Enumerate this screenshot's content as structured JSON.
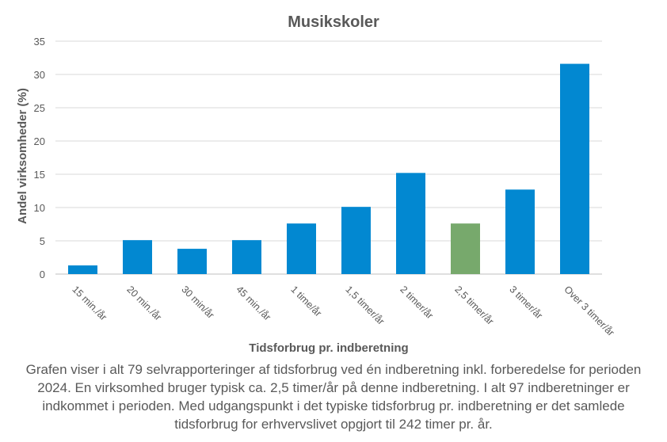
{
  "chart_data": {
    "type": "bar",
    "title": "Musikskoler",
    "xlabel": "Tidsforbrug pr. indberetning",
    "ylabel": "Andel virksomheder  (%)",
    "categories": [
      "15 min./år",
      "20 min./år",
      "30 min/år",
      "45 min./år",
      "1 time/år",
      "1,5 timer/år",
      "2 timer/år",
      "2,5 timer/år",
      "3 timer/år",
      "Over 3 timer/år"
    ],
    "values": [
      1.3,
      5.1,
      3.8,
      5.1,
      7.6,
      10.1,
      15.2,
      7.6,
      12.7,
      31.6
    ],
    "highlight_index": 7,
    "ylim": [
      0,
      35
    ],
    "yticks": [
      0,
      5,
      10,
      15,
      20,
      25,
      30,
      35
    ],
    "grid": true,
    "legend": "none",
    "colors": {
      "bar": "#0288d1",
      "highlight": "#77a96c",
      "grid": "#d9d9d9",
      "text": "#595959"
    }
  },
  "caption": "Grafen viser i alt 79 selvrapporteringer af tidsforbrug ved én indberetning inkl. forberedelse for perioden 2024. En virksomhed bruger typisk ca. 2,5 timer/år på denne indberetning. I alt 97 indberetninger er indkommet i perioden. Med udgangspunkt i det typiske tidsforbrug pr. indberetning er det samlede tidsforbrug for erhvervslivet opgjort til 242 timer pr. år."
}
